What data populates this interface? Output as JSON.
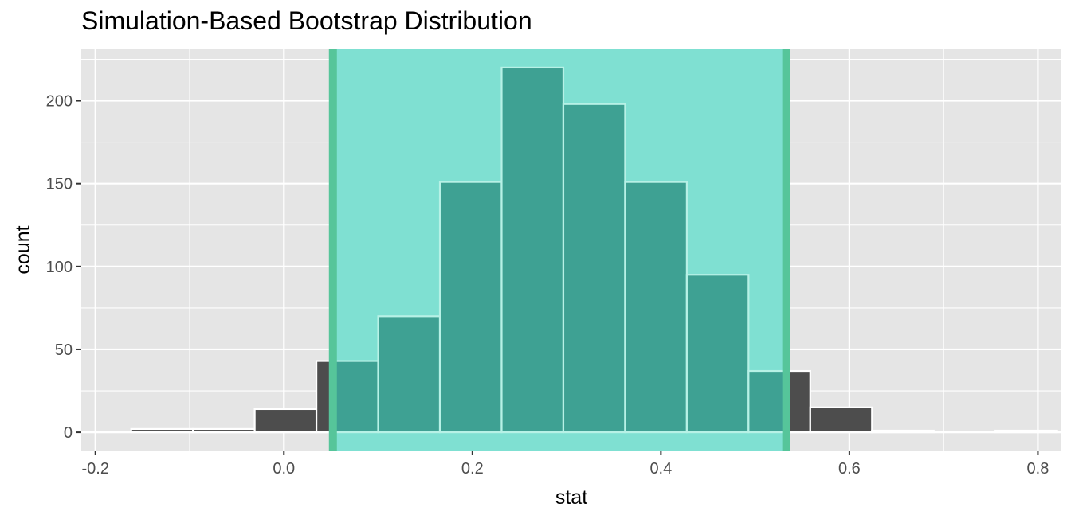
{
  "chart_data": {
    "type": "bar",
    "title": "Simulation-Based Bootstrap Distribution",
    "xlabel": "stat",
    "ylabel": "count",
    "xlim": [
      -0.215,
      0.825
    ],
    "ylim": [
      -11,
      231
    ],
    "x_ticks": [
      -0.2,
      0.0,
      0.2,
      0.4,
      0.6,
      0.8
    ],
    "x_tick_labels": [
      "-0.2",
      "0.0",
      "0.2",
      "0.4",
      "0.6",
      "0.8"
    ],
    "y_ticks": [
      0,
      50,
      100,
      150,
      200
    ],
    "y_tick_labels": [
      "0",
      "50",
      "100",
      "150",
      "200"
    ],
    "bin_width": 0.0655,
    "bins": [
      {
        "x0": -0.162,
        "x1": -0.0965,
        "count": 2
      },
      {
        "x0": -0.0965,
        "x1": -0.031,
        "count": 2
      },
      {
        "x0": -0.031,
        "x1": 0.0345,
        "count": 14
      },
      {
        "x0": 0.0345,
        "x1": 0.1,
        "count": 43
      },
      {
        "x0": 0.1,
        "x1": 0.1655,
        "count": 70
      },
      {
        "x0": 0.1655,
        "x1": 0.231,
        "count": 151
      },
      {
        "x0": 0.231,
        "x1": 0.2965,
        "count": 220
      },
      {
        "x0": 0.2965,
        "x1": 0.362,
        "count": 198
      },
      {
        "x0": 0.362,
        "x1": 0.4275,
        "count": 151
      },
      {
        "x0": 0.4275,
        "x1": 0.493,
        "count": 95
      },
      {
        "x0": 0.493,
        "x1": 0.5585,
        "count": 37
      },
      {
        "x0": 0.5585,
        "x1": 0.624,
        "count": 15
      },
      {
        "x0": 0.624,
        "x1": 0.6895,
        "count": 1
      },
      {
        "x0": 0.6895,
        "x1": 0.755,
        "count": 0
      },
      {
        "x0": 0.755,
        "x1": 0.8205,
        "count": 1
      }
    ],
    "confidence_interval": {
      "lower": 0.052,
      "upper": 0.533
    },
    "grid": true,
    "colors": {
      "panel_background": "#e5e5e5",
      "grid": "#ffffff",
      "bar_fill": "#4d4d4d",
      "bar_outline": "#ffffff",
      "interval_fill": "#7fe0d2",
      "interval_line": "#56c59a",
      "bar_fill_in_interval": "#3ea193",
      "bar_outline_in_interval": "#b7f1e6"
    }
  }
}
